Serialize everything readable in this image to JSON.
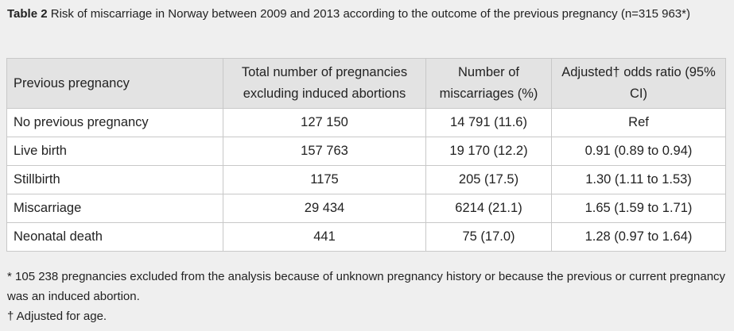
{
  "caption": {
    "label": "Table 2",
    "text": " Risk of miscarriage in Norway between 2009 and 2013 according to the outcome of the previous pregnancy (n=315 963*)"
  },
  "table": {
    "headers": [
      "Previous pregnancy",
      "Total number of pregnancies excluding induced abortions",
      "Number of miscarriages (%)",
      "Adjusted† odds ratio (95% CI)"
    ],
    "rows": [
      [
        "No previous pregnancy",
        "127 150",
        "14 791 (11.6)",
        "Ref"
      ],
      [
        "Live birth",
        "157 763",
        "19 170 (12.2)",
        "0.91 (0.89 to 0.94)"
      ],
      [
        "Stillbirth",
        "1175",
        "205 (17.5)",
        "1.30 (1.11 to 1.53)"
      ],
      [
        "Miscarriage",
        "29 434",
        "6214 (21.1)",
        "1.65 (1.59 to 1.71)"
      ],
      [
        "Neonatal death",
        "441",
        "75 (17.0)",
        "1.28 (0.97 to 1.64)"
      ]
    ]
  },
  "footnotes": [
    "* 105 238 pregnancies excluded from the analysis because of unknown pregnancy history or because the previous or current pregnancy was an induced abortion.",
    "† Adjusted for age."
  ]
}
